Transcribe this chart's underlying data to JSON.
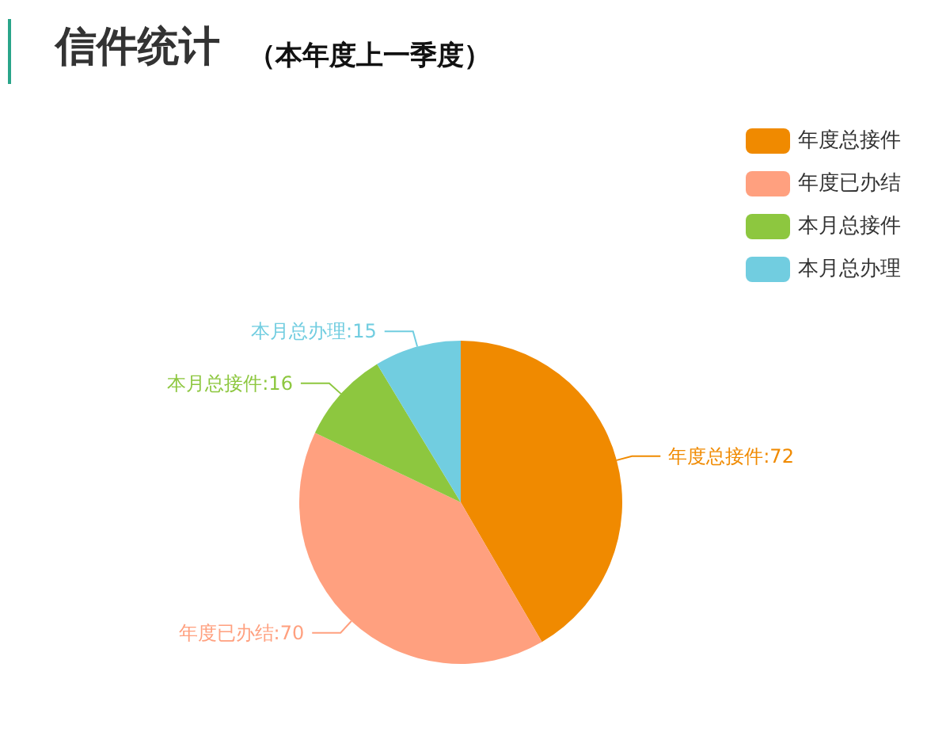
{
  "chart_data": {
    "type": "pie",
    "title": "信件统计",
    "subtitle": "（本年度上一季度）",
    "categories": [
      "年度总接件",
      "年度已办结",
      "本月总接件",
      "本月总办理"
    ],
    "values": [
      72,
      70,
      16,
      15
    ],
    "value_labels": [
      ":72",
      ":70",
      ":16",
      ":15"
    ],
    "colors": [
      "#f08a00",
      "#ffa07f",
      "#8dc73f",
      "#71cde0"
    ],
    "legend": "top right"
  }
}
